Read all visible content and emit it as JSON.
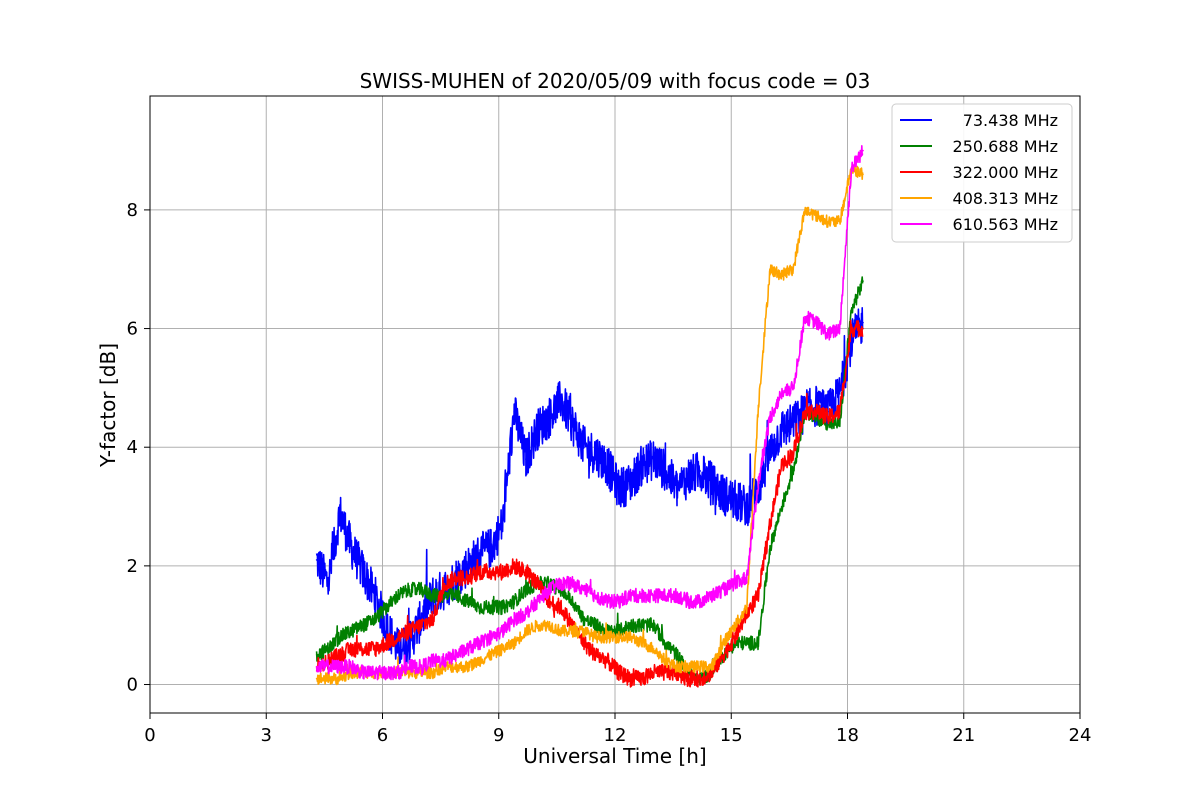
{
  "chart_data": {
    "type": "line",
    "title": "SWISS-MUHEN of 2020/05/09 with focus code = 03",
    "xlabel": "Universal Time [h]",
    "ylabel": "Y-factor [dB]",
    "xlim": [
      0,
      24
    ],
    "ylim": [
      -0.48,
      9.92
    ],
    "xticks": [
      0,
      3,
      6,
      9,
      12,
      15,
      18,
      21,
      24
    ],
    "xtick_labels": [
      "0",
      "3",
      "6",
      "9",
      "12",
      "15",
      "18",
      "21",
      "24"
    ],
    "yticks": [
      0,
      2,
      4,
      6,
      8
    ],
    "ytick_labels": [
      "0",
      "2",
      "4",
      "6",
      "8"
    ],
    "grid": true,
    "legend_position": "top-right",
    "series": [
      {
        "name": "73.438 MHz",
        "color": "#0000ff",
        "x": [
          4.3,
          4.6,
          4.9,
          5.2,
          5.5,
          5.8,
          6.1,
          6.4,
          6.7,
          7.0,
          7.3,
          7.6,
          7.9,
          8.2,
          8.5,
          8.8,
          9.1,
          9.4,
          9.7,
          10.0,
          10.3,
          10.6,
          10.9,
          11.2,
          11.5,
          11.8,
          12.1,
          12.4,
          12.7,
          13.0,
          13.3,
          13.6,
          13.9,
          14.2,
          14.5,
          14.8,
          15.1,
          15.4,
          15.7,
          16.0,
          16.3,
          16.6,
          16.9,
          17.2,
          17.5,
          17.8,
          18.1,
          18.4
        ],
        "y": [
          2.1,
          1.7,
          2.9,
          2.3,
          1.9,
          1.5,
          1.0,
          0.6,
          0.7,
          1.1,
          1.5,
          1.6,
          1.8,
          2.0,
          2.2,
          2.3,
          2.7,
          4.6,
          3.8,
          4.3,
          4.5,
          4.8,
          4.4,
          4.0,
          3.9,
          3.7,
          3.3,
          3.4,
          3.7,
          3.8,
          3.6,
          3.3,
          3.5,
          3.6,
          3.4,
          3.2,
          3.1,
          3.0,
          3.3,
          3.9,
          4.3,
          4.4,
          4.6,
          4.7,
          4.6,
          4.9,
          5.8,
          6.1
        ],
        "noise": 0.35
      },
      {
        "name": "250.688 MHz",
        "color": "#008000",
        "x": [
          4.3,
          4.6,
          4.9,
          5.2,
          5.5,
          5.8,
          6.1,
          6.4,
          6.7,
          7.0,
          7.3,
          7.6,
          7.9,
          8.2,
          8.5,
          8.8,
          9.1,
          9.4,
          9.7,
          10.0,
          10.3,
          10.6,
          10.9,
          11.2,
          11.5,
          11.8,
          12.1,
          12.4,
          12.7,
          13.0,
          13.3,
          13.6,
          13.9,
          14.2,
          14.5,
          14.8,
          15.1,
          15.4,
          15.7,
          16.0,
          16.3,
          16.6,
          16.9,
          17.2,
          17.5,
          17.8,
          18.1,
          18.4
        ],
        "y": [
          0.5,
          0.6,
          0.8,
          0.9,
          1.0,
          1.1,
          1.3,
          1.5,
          1.6,
          1.6,
          1.5,
          1.5,
          1.5,
          1.4,
          1.3,
          1.3,
          1.3,
          1.4,
          1.6,
          1.7,
          1.7,
          1.6,
          1.4,
          1.1,
          1.0,
          0.9,
          0.9,
          1.0,
          1.0,
          1.0,
          0.7,
          0.5,
          0.2,
          0.1,
          0.2,
          0.5,
          0.7,
          0.7,
          0.7,
          2.3,
          3.0,
          3.6,
          4.6,
          4.5,
          4.4,
          4.4,
          6.3,
          6.8
        ],
        "noise": 0.12
      },
      {
        "name": "322.000 MHz",
        "color": "#ff0000",
        "x": [
          4.3,
          4.6,
          4.9,
          5.2,
          5.5,
          5.8,
          6.1,
          6.4,
          6.7,
          7.0,
          7.3,
          7.6,
          7.9,
          8.2,
          8.5,
          8.8,
          9.1,
          9.4,
          9.7,
          10.0,
          10.3,
          10.6,
          10.9,
          11.2,
          11.5,
          11.8,
          12.1,
          12.4,
          12.7,
          13.0,
          13.3,
          13.6,
          13.9,
          14.2,
          14.5,
          14.8,
          15.1,
          15.4,
          15.7,
          16.0,
          16.3,
          16.6,
          16.9,
          17.2,
          17.5,
          17.8,
          18.1,
          18.4
        ],
        "y": [
          0.3,
          0.4,
          0.5,
          0.6,
          0.6,
          0.6,
          0.7,
          0.8,
          0.9,
          1.0,
          1.1,
          1.7,
          1.8,
          1.8,
          1.9,
          1.9,
          1.9,
          2.0,
          1.9,
          1.7,
          1.4,
          1.3,
          1.0,
          0.7,
          0.5,
          0.4,
          0.2,
          0.1,
          0.1,
          0.2,
          0.2,
          0.2,
          0.1,
          0.1,
          0.2,
          0.5,
          0.8,
          1.2,
          1.5,
          2.7,
          3.7,
          3.9,
          4.6,
          4.6,
          4.5,
          4.6,
          6.0,
          6.0
        ],
        "noise": 0.14
      },
      {
        "name": "408.313 MHz",
        "color": "#ffa500",
        "x": [
          4.3,
          4.6,
          4.9,
          5.2,
          5.5,
          5.8,
          6.1,
          6.4,
          6.7,
          7.0,
          7.3,
          7.6,
          7.9,
          8.2,
          8.5,
          8.8,
          9.1,
          9.4,
          9.7,
          10.0,
          10.3,
          10.6,
          10.9,
          11.2,
          11.5,
          11.8,
          12.1,
          12.4,
          12.7,
          13.0,
          13.3,
          13.6,
          13.9,
          14.2,
          14.5,
          14.8,
          15.1,
          15.4,
          15.7,
          16.0,
          16.3,
          16.6,
          16.9,
          17.2,
          17.5,
          17.8,
          18.1,
          18.4
        ],
        "y": [
          0.1,
          0.1,
          0.1,
          0.2,
          0.2,
          0.2,
          0.2,
          0.2,
          0.2,
          0.2,
          0.2,
          0.3,
          0.3,
          0.3,
          0.4,
          0.5,
          0.6,
          0.7,
          0.9,
          1.0,
          1.0,
          0.9,
          0.9,
          0.9,
          0.8,
          0.8,
          0.8,
          0.8,
          0.7,
          0.6,
          0.4,
          0.3,
          0.3,
          0.3,
          0.3,
          0.7,
          1.0,
          1.3,
          4.7,
          7.0,
          6.9,
          7.0,
          8.0,
          7.9,
          7.8,
          7.8,
          8.7,
          8.6
        ],
        "noise": 0.1
      },
      {
        "name": "610.563 MHz",
        "color": "#ff00ff",
        "x": [
          4.3,
          4.6,
          4.9,
          5.2,
          5.5,
          5.8,
          6.1,
          6.4,
          6.7,
          7.0,
          7.3,
          7.6,
          7.9,
          8.2,
          8.5,
          8.8,
          9.1,
          9.4,
          9.7,
          10.0,
          10.3,
          10.6,
          10.9,
          11.2,
          11.5,
          11.8,
          12.1,
          12.4,
          12.7,
          13.0,
          13.3,
          13.6,
          13.9,
          14.2,
          14.5,
          14.8,
          15.1,
          15.4,
          15.7,
          16.0,
          16.3,
          16.6,
          16.9,
          17.2,
          17.5,
          17.8,
          18.1,
          18.4
        ],
        "y": [
          0.3,
          0.3,
          0.3,
          0.3,
          0.2,
          0.2,
          0.2,
          0.2,
          0.3,
          0.3,
          0.4,
          0.4,
          0.5,
          0.6,
          0.7,
          0.8,
          0.9,
          1.1,
          1.2,
          1.4,
          1.6,
          1.7,
          1.7,
          1.6,
          1.5,
          1.4,
          1.4,
          1.5,
          1.5,
          1.5,
          1.5,
          1.5,
          1.4,
          1.4,
          1.5,
          1.6,
          1.7,
          1.8,
          3.4,
          4.5,
          4.9,
          5.0,
          6.2,
          6.1,
          5.9,
          6.0,
          8.7,
          9.0
        ],
        "noise": 0.12
      }
    ]
  }
}
